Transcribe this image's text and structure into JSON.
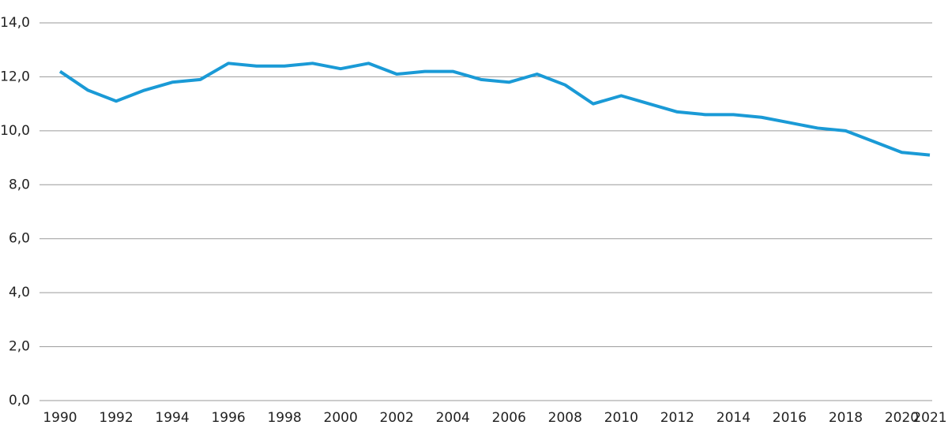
{
  "chart_data": {
    "type": "line",
    "x": [
      1990,
      1991,
      1992,
      1993,
      1994,
      1995,
      1996,
      1997,
      1998,
      1999,
      2000,
      2001,
      2002,
      2003,
      2004,
      2005,
      2006,
      2007,
      2008,
      2009,
      2010,
      2011,
      2012,
      2013,
      2014,
      2015,
      2016,
      2017,
      2018,
      2019,
      2020,
      2021
    ],
    "series": [
      {
        "color": "#1a9ad6",
        "values": [
          12.2,
          11.5,
          11.1,
          11.5,
          11.8,
          11.9,
          12.5,
          12.4,
          12.4,
          12.5,
          12.3,
          12.5,
          12.1,
          12.2,
          12.2,
          11.9,
          11.8,
          12.1,
          11.7,
          11.0,
          11.3,
          11.0,
          10.7,
          10.6,
          10.6,
          10.5,
          10.3,
          10.1,
          10.0,
          9.6,
          9.2,
          9.1
        ]
      }
    ],
    "xlim": [
      1990,
      2021
    ],
    "xticks": [
      1990,
      1992,
      1994,
      1996,
      1998,
      2000,
      2002,
      2004,
      2006,
      2008,
      2010,
      2012,
      2014,
      2016,
      2018,
      2020,
      2021
    ],
    "ylim": [
      0,
      14
    ],
    "yticks": [
      {
        "value": 0,
        "label": "0,0"
      },
      {
        "value": 2,
        "label": "2,0"
      },
      {
        "value": 4,
        "label": "4,0"
      },
      {
        "value": 6,
        "label": "6,0"
      },
      {
        "value": 8,
        "label": "8,0"
      },
      {
        "value": 10,
        "label": "10,0"
      },
      {
        "value": 12,
        "label": "12,0"
      },
      {
        "value": 14,
        "label": "14,0"
      }
    ],
    "grid": true
  }
}
